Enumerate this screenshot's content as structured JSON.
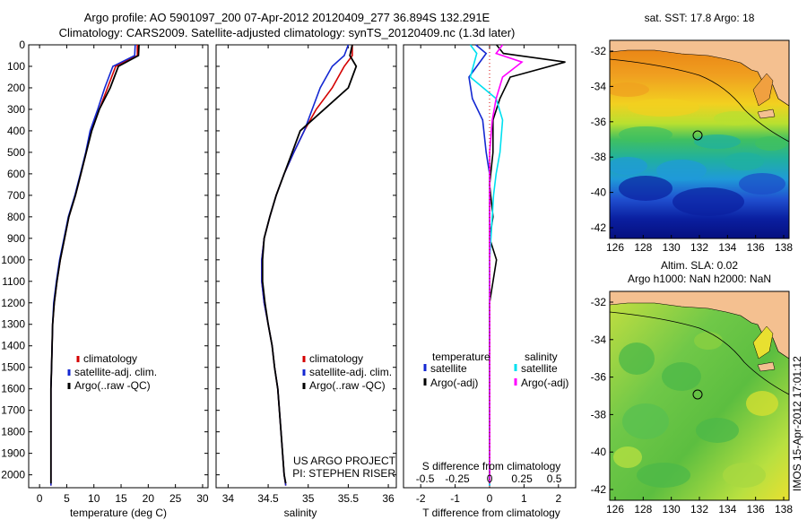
{
  "header": {
    "title1": "Argo profile: AO 5901097_200 07-Apr-2012 20120409_277 36.894S 132.291E",
    "title2": "Climatology: CARS2009. Satellite-adjusted climatology: synTS_20120409.nc (1.3d later)"
  },
  "colors": {
    "clim": "#d40000",
    "sat": "#1428d2",
    "argo": "#000000",
    "sat_s": "#00e0f0",
    "argo_s": "#ff00ff",
    "land": "#f4c090"
  },
  "yaxis": {
    "ticks": [
      0,
      100,
      200,
      300,
      400,
      500,
      600,
      700,
      800,
      900,
      1000,
      1100,
      1200,
      1300,
      1400,
      1500,
      1600,
      1700,
      1800,
      1900,
      2000
    ]
  },
  "temperature_panel": {
    "xlabel": "temperature (deg C)",
    "xticks": [
      0,
      5,
      10,
      15,
      20,
      25,
      30
    ],
    "legend": [
      "climatology",
      "satellite-adj. clim.",
      "Argo(..raw -QC)"
    ]
  },
  "salinity_panel": {
    "xlabel": "salinity",
    "xticks": [
      "34",
      "34.5",
      "35",
      "35.5",
      "36"
    ],
    "legend": [
      "climatology",
      "satellite-adj. clim.",
      "Argo(..raw -QC)"
    ],
    "note1": "US ARGO PROJECT",
    "note2": "PI: STEPHEN RISER"
  },
  "diff_panel": {
    "xlabel": "T difference from climatology",
    "top_label": "S difference from climatology",
    "top_ticks": [
      "-0.5",
      "-0.25",
      "0",
      "0.25",
      "0.5"
    ],
    "xticks": [
      "-2",
      "-1",
      "0",
      "1",
      "2"
    ],
    "legend_t_title": "temperature",
    "legend_s_title": "salinity",
    "legend_sat": "satellite",
    "legend_argo": "Argo(-adj)"
  },
  "map_top": {
    "title": "sat. SST: 17.8 Argo: 18",
    "yticks": [
      "-32",
      "-34",
      "-36",
      "-38",
      "-40",
      "-42"
    ],
    "xticks": [
      "126",
      "128",
      "130",
      "132",
      "134",
      "136",
      "138"
    ]
  },
  "map_bottom": {
    "title1": "Altim. SLA: 0.02",
    "title2": "Argo h1000: NaN h2000: NaN",
    "yticks": [
      "-32",
      "-34",
      "-36",
      "-38",
      "-40",
      "-42"
    ],
    "xticks": [
      "126",
      "128",
      "130",
      "132",
      "134",
      "136",
      "138"
    ]
  },
  "footer_stamp": "IMOS 15-Apr-2012 17:01:12",
  "chart_data": [
    {
      "type": "line",
      "xlabel": "temperature (deg C)",
      "ylabel": "",
      "xlim": [
        -2,
        31
      ],
      "ylim": [
        2060,
        0
      ],
      "series": [
        {
          "name": "climatology",
          "x": [
            18,
            18,
            14,
            12.5,
            11,
            9.5,
            8.6,
            7.6,
            6.6,
            5.4,
            4.6,
            3.8,
            3.2,
            2.7,
            2.4,
            2.3,
            2.2,
            2.1,
            2.1,
            2.1,
            2.1
          ],
          "y": [
            0,
            50,
            100,
            200,
            300,
            400,
            500,
            600,
            700,
            800,
            900,
            1000,
            1100,
            1200,
            1300,
            1400,
            1500,
            1600,
            1800,
            2000,
            2050
          ]
        },
        {
          "name": "satellite-adj. clim.",
          "x": [
            17.6,
            17.5,
            13.5,
            12,
            10.7,
            9.3,
            8.5,
            7.5,
            6.5,
            5.3,
            4.5,
            3.7,
            3.1,
            2.6,
            2.4,
            2.3,
            2.2,
            2.1,
            2.1,
            2.1,
            2.1
          ],
          "y": [
            0,
            50,
            100,
            200,
            300,
            400,
            500,
            600,
            700,
            800,
            900,
            1000,
            1100,
            1200,
            1300,
            1400,
            1500,
            1600,
            1800,
            2000,
            2050
          ]
        },
        {
          "name": "Argo(..raw -QC)",
          "x": [
            18.3,
            18.2,
            14.5,
            13,
            11,
            9.6,
            8.6,
            7.6,
            6.6,
            5.4,
            4.6,
            3.8,
            3.2,
            2.7,
            2.4,
            2.3,
            2.2,
            2.1,
            2.1,
            2.1,
            2.1
          ],
          "y": [
            0,
            50,
            100,
            200,
            300,
            400,
            500,
            600,
            700,
            800,
            900,
            1000,
            1100,
            1200,
            1300,
            1400,
            1500,
            1600,
            1800,
            2000,
            2040
          ]
        }
      ]
    },
    {
      "type": "line",
      "xlabel": "salinity",
      "ylabel": "",
      "xlim": [
        33.85,
        36.1
      ],
      "ylim": [
        2060,
        0
      ],
      "series": [
        {
          "name": "climatology",
          "x": [
            35.55,
            35.55,
            35.45,
            35.3,
            35.1,
            34.95,
            34.82,
            34.7,
            34.6,
            34.52,
            34.45,
            34.42,
            34.42,
            34.45,
            34.5,
            34.55,
            34.58,
            34.62,
            34.66,
            34.7,
            34.72
          ],
          "y": [
            0,
            50,
            100,
            200,
            300,
            400,
            500,
            600,
            700,
            800,
            900,
            1000,
            1100,
            1200,
            1300,
            1400,
            1500,
            1600,
            1800,
            2000,
            2050
          ]
        },
        {
          "name": "satellite-adj. clim.",
          "x": [
            35.5,
            35.45,
            35.3,
            35.15,
            35.05,
            34.95,
            34.82,
            34.7,
            34.6,
            34.52,
            34.45,
            34.42,
            34.42,
            34.45,
            34.5,
            34.55,
            34.58,
            34.62,
            34.66,
            34.7,
            34.72
          ],
          "y": [
            0,
            50,
            100,
            200,
            300,
            400,
            500,
            600,
            700,
            800,
            900,
            1000,
            1100,
            1200,
            1300,
            1400,
            1500,
            1600,
            1800,
            2000,
            2050
          ]
        },
        {
          "name": "Argo(..raw -QC)",
          "x": [
            35.55,
            35.52,
            35.6,
            35.5,
            35.2,
            34.9,
            34.8,
            34.7,
            34.6,
            34.52,
            34.45,
            34.43,
            34.43,
            34.46,
            34.5,
            34.55,
            34.58,
            34.62,
            34.66,
            34.7,
            34.72
          ],
          "y": [
            0,
            50,
            100,
            200,
            300,
            400,
            500,
            600,
            700,
            800,
            900,
            1000,
            1100,
            1200,
            1300,
            1400,
            1500,
            1600,
            1800,
            2000,
            2040
          ]
        }
      ]
    },
    {
      "type": "line",
      "xlabel": "T difference from climatology",
      "ylabel": "",
      "xlim": [
        -2.5,
        2.5
      ],
      "ylim": [
        2060,
        0
      ],
      "series": [
        {
          "name": "temperature satellite",
          "x": [
            -0.4,
            -0.1,
            -0.6,
            -0.5,
            -0.2,
            -0.1,
            0,
            0,
            0,
            0,
            0,
            0,
            0,
            0,
            0,
            0,
            0
          ],
          "y": [
            0,
            40,
            150,
            250,
            350,
            500,
            600,
            700,
            800,
            900,
            1000,
            1200,
            1400,
            1600,
            1800,
            2000,
            2050
          ]
        },
        {
          "name": "temperature Argo(-adj)",
          "x": [
            0.2,
            0.4,
            2.2,
            0.6,
            0.3,
            0.1,
            0.1,
            0,
            0.1,
            0,
            0.2,
            0,
            0,
            0,
            0,
            0,
            0
          ],
          "y": [
            0,
            40,
            80,
            150,
            250,
            350,
            500,
            650,
            800,
            900,
            1000,
            1200,
            1400,
            1600,
            1800,
            2000,
            2040
          ]
        },
        {
          "name": "salinity satellite",
          "x": [
            -0.15,
            -0.1,
            -0.15,
            0.05,
            0.1,
            0.08,
            0.05,
            0.03,
            0.02,
            0.01,
            0,
            0,
            0,
            0,
            0,
            0,
            0
          ],
          "y": [
            0,
            40,
            150,
            250,
            350,
            500,
            600,
            700,
            800,
            900,
            1000,
            1200,
            1400,
            1600,
            1800,
            2000,
            2050
          ]
        },
        {
          "name": "salinity Argo(-adj)",
          "x": [
            0.1,
            0.05,
            0.25,
            0.1,
            0.05,
            0.02,
            0,
            0,
            0,
            0,
            0,
            0,
            0,
            0,
            0,
            0,
            0
          ],
          "y": [
            0,
            40,
            80,
            150,
            250,
            350,
            500,
            650,
            800,
            900,
            1000,
            1200,
            1400,
            1600,
            1800,
            2000,
            2040
          ]
        }
      ]
    },
    {
      "type": "heatmap",
      "title": "sat. SST: 17.8 Argo: 18",
      "xlim": [
        125.7,
        138.7
      ],
      "ylim": [
        -42.8,
        -31.2
      ],
      "argo_position": {
        "lon": 132.291,
        "lat": -36.894
      }
    },
    {
      "type": "heatmap",
      "title": "Altim. SLA: 0.02",
      "xlim": [
        125.7,
        138.7
      ],
      "ylim": [
        -42.8,
        -31.2
      ],
      "argo_position": {
        "lon": 132.291,
        "lat": -36.894
      }
    }
  ]
}
